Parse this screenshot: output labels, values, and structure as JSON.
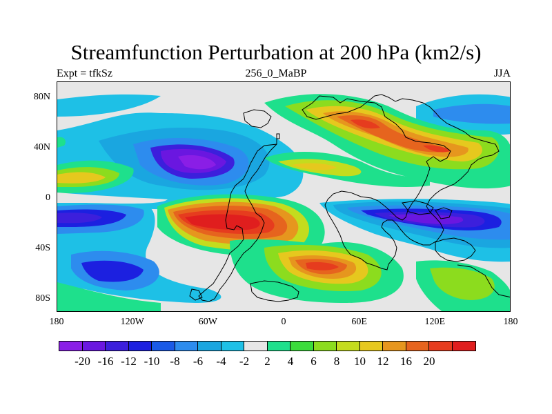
{
  "plot": {
    "title": "Streamfunction Perturbation at 200 hPa (km2/s)",
    "left_label": "Expt = tfkSz",
    "center_label": "256_0_MaBP",
    "right_label": "JJA",
    "lat_ticks": [
      "80N",
      "40N",
      "0",
      "40S",
      "80S"
    ],
    "lon_ticks": [
      "180",
      "120W",
      "60W",
      "0",
      "60E",
      "120E",
      "180"
    ]
  },
  "colorbar": {
    "labels": [
      "-20",
      "-16",
      "-12",
      "-10",
      "-8",
      "-6",
      "-4",
      "-2",
      "2",
      "4",
      "6",
      "8",
      "10",
      "12",
      "16",
      "20"
    ],
    "colors": [
      "#8a1ee6",
      "#6a17e0",
      "#3c1fdc",
      "#1c20e0",
      "#1a5ae6",
      "#2d8cee",
      "#1aa6e0",
      "#1ec0e6",
      "#e6e6e6",
      "#1ee08c",
      "#3cdc3c",
      "#8cdc1e",
      "#c4dc1e",
      "#e6c81e",
      "#e6961e",
      "#e6641e",
      "#e63c1e",
      "#e01e1e"
    ]
  }
}
